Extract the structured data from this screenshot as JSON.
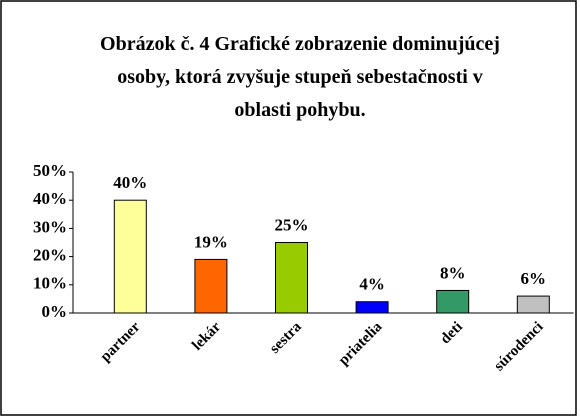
{
  "chart_data": {
    "type": "bar",
    "title": "Obrázok č. 4 Grafické zobrazenie dominujúcej osoby, ktorá zvyšuje stupeň sebestačnosti v oblasti pohybu.",
    "categories": [
      "partner",
      "lekár",
      "sestra",
      "priatelia",
      "deti",
      "súrodenci"
    ],
    "values": [
      40,
      19,
      25,
      4,
      8,
      6
    ],
    "value_labels": [
      "40%",
      "19%",
      "25%",
      "4%",
      "8%",
      "6%"
    ],
    "colors": [
      "#ffff99",
      "#ff6600",
      "#99cc00",
      "#0000ff",
      "#339966",
      "#c0c0c0"
    ],
    "ylim": [
      0,
      50
    ],
    "yticks": [
      {
        "value": 0,
        "label": "0%"
      },
      {
        "value": 10,
        "label": "10%"
      },
      {
        "value": 20,
        "label": "20%"
      },
      {
        "value": 30,
        "label": "30%"
      },
      {
        "value": 40,
        "label": "40%"
      },
      {
        "value": 50,
        "label": "50%"
      }
    ],
    "grid": false
  }
}
